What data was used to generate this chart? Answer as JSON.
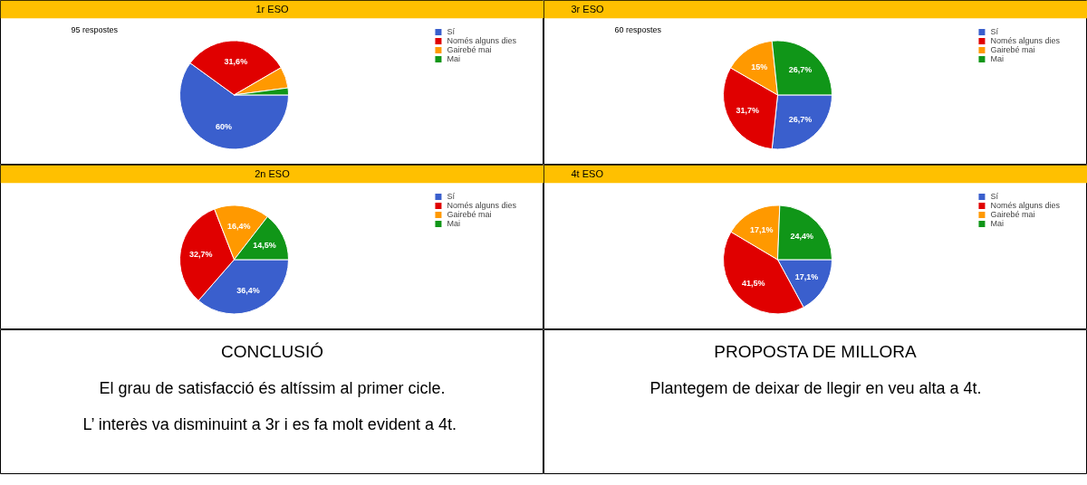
{
  "chart_data": [
    {
      "type": "pie",
      "title": "1r ESO",
      "subtitle": "95 respostes",
      "categories": [
        "Sí",
        "Només alguns dies",
        "Gairebé mai",
        "Mai"
      ],
      "values": [
        60,
        31.6,
        6.3,
        2.1
      ],
      "colors": [
        "#3a5fcd",
        "#e00000",
        "#ff9900",
        "#109618"
      ],
      "value_labels": [
        "60%",
        "31,6%",
        null,
        null
      ],
      "legend": "right"
    },
    {
      "type": "pie",
      "title": "3r ESO",
      "subtitle": "60 respostes",
      "categories": [
        "Sí",
        "Només alguns dies",
        "Gairebé mai",
        "Mai"
      ],
      "values": [
        26.7,
        31.7,
        15,
        26.7
      ],
      "colors": [
        "#3a5fcd",
        "#e00000",
        "#ff9900",
        "#109618"
      ],
      "value_labels": [
        "26,7%",
        "31,7%",
        "15%",
        "26,7%"
      ],
      "legend": "right"
    },
    {
      "type": "pie",
      "title": "2n ESO",
      "categories": [
        "Sí",
        "Només alguns dies",
        "Gairebé mai",
        "Mai"
      ],
      "values": [
        36.4,
        32.7,
        16.4,
        14.5
      ],
      "colors": [
        "#3a5fcd",
        "#e00000",
        "#ff9900",
        "#109618"
      ],
      "value_labels": [
        "36,4%",
        "32,7%",
        "16,4%",
        "14,5%"
      ],
      "legend": "right"
    },
    {
      "type": "pie",
      "title": "4t ESO",
      "categories": [
        "Sí",
        "Només alguns dies",
        "Gairebé mai",
        "Mai"
      ],
      "values": [
        17.1,
        41.5,
        17.1,
        24.4
      ],
      "colors": [
        "#3a5fcd",
        "#e00000",
        "#ff9900",
        "#109618"
      ],
      "value_labels": [
        "17,1%",
        "41,5%",
        "17,1%",
        "24,4%"
      ],
      "legend": "right"
    },
    {
      "type": "other",
      "title": "CONCLUSIÓ",
      "annotations": [
        "El grau de satisfacció és altíssim al primer cicle.",
        "L’ interès va disminuint a 3r i es fa  molt evident a 4t."
      ]
    },
    {
      "type": "other",
      "title": "PROPOSTA DE MILLORA",
      "annotations": [
        "Plantegem de deixar de llegir en veu alta a 4t."
      ]
    }
  ]
}
